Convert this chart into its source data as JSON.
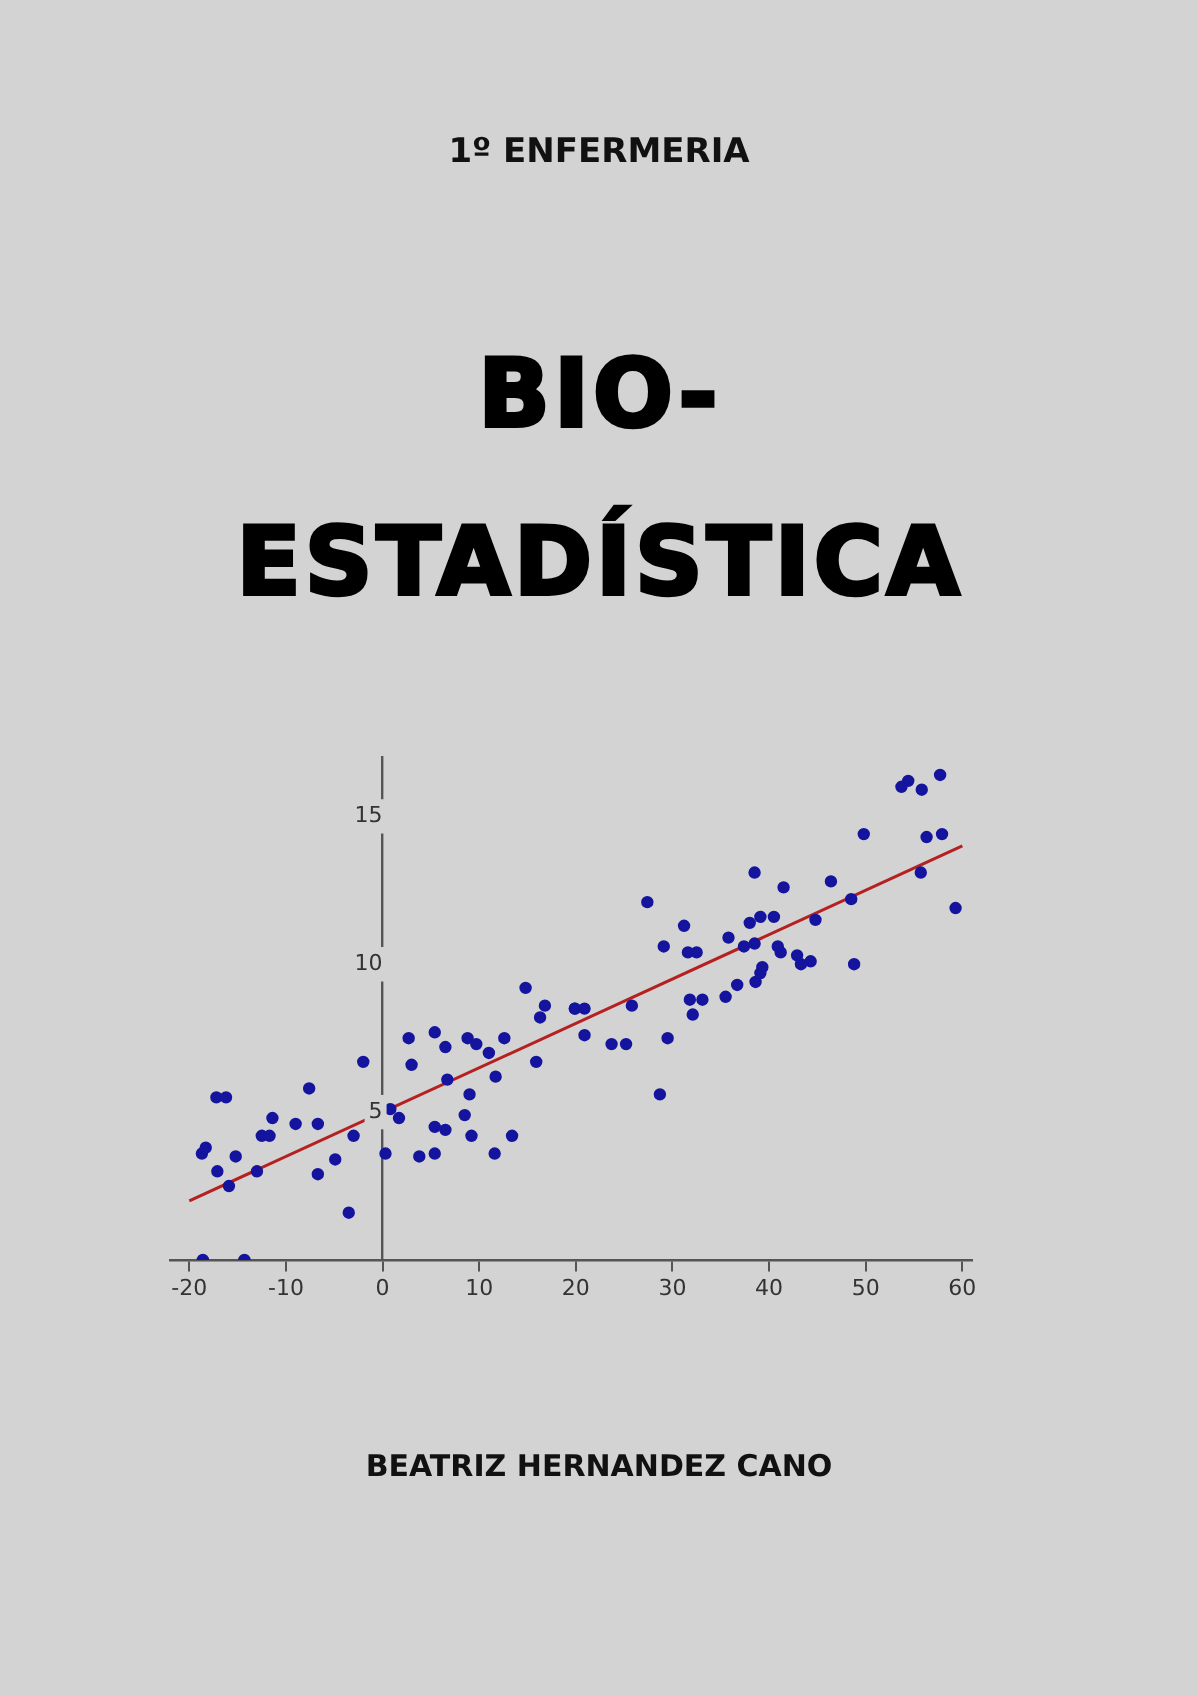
{
  "chart_data": {
    "type": "scatter",
    "title": "BIO-ESTADÍSTICA",
    "subtitle": "1º ENFERMERIA",
    "annotations": [
      "BEATRIZ HERNANDEZ CANO"
    ],
    "xlim": [
      -22,
      61
    ],
    "ylim": [
      0,
      17
    ],
    "xticks": [
      -20,
      -10,
      0,
      10,
      20,
      30,
      40,
      50,
      60
    ],
    "yticks": [
      5,
      10,
      15
    ],
    "grid": false,
    "legend": false,
    "marker": "circle",
    "series": [
      {
        "type": "scatter",
        "color": "#14149e",
        "x": [
          -18.7,
          -18.3,
          -17.1,
          -17.2,
          -16.2,
          -15.2,
          -15.9,
          -13.0,
          -12.5,
          -11.7,
          -11.4,
          -9.0,
          -7.6,
          -6.7,
          -6.7,
          -4.9,
          -3.5,
          -3.0,
          -2.0,
          0.3,
          0.8,
          1.7,
          2.7,
          3.0,
          3.8,
          5.4,
          5.4,
          5.4,
          6.5,
          6.5,
          6.7,
          8.5,
          8.8,
          9.0,
          9.2,
          9.7,
          11.0,
          11.6,
          11.7,
          12.6,
          13.4,
          14.8,
          15.9,
          16.3,
          16.8,
          19.9,
          -18.6,
          -14.3,
          19.9,
          20.9,
          20.9,
          23.7,
          25.2,
          25.8,
          27.4,
          28.7,
          29.1,
          29.5,
          31.2,
          31.6,
          31.8,
          32.1,
          32.5,
          33.1,
          35.5,
          35.8,
          36.7,
          37.4,
          38.0,
          38.5,
          38.5,
          38.6,
          39.1,
          39.1,
          39.3,
          40.5,
          40.9,
          41.2,
          41.5,
          42.9,
          43.3,
          44.3,
          44.8,
          46.4,
          48.5,
          48.8,
          49.8,
          53.7,
          54.4,
          55.8,
          55.7,
          56.3,
          57.7,
          57.9,
          59.3
        ],
        "values": [
          3.6,
          3.8,
          3.0,
          5.5,
          5.5,
          3.5,
          2.5,
          3.0,
          4.2,
          4.2,
          4.8,
          4.6,
          5.8,
          4.6,
          2.9,
          3.4,
          1.6,
          4.2,
          6.7,
          3.6,
          5.1,
          4.8,
          7.5,
          6.6,
          3.5,
          7.7,
          3.6,
          4.5,
          7.2,
          4.4,
          6.1,
          4.9,
          7.5,
          5.6,
          4.2,
          7.3,
          7.0,
          3.6,
          6.2,
          7.5,
          4.2,
          9.2,
          6.7,
          8.2,
          8.6,
          8.5,
          0.0,
          0.0,
          8.5,
          8.5,
          7.6,
          7.3,
          7.3,
          8.6,
          12.1,
          5.6,
          10.6,
          7.5,
          11.3,
          10.4,
          8.8,
          8.3,
          10.4,
          8.8,
          8.9,
          10.9,
          9.3,
          10.6,
          11.4,
          10.7,
          13.1,
          9.4,
          11.6,
          9.7,
          9.9,
          11.6,
          10.6,
          10.4,
          12.6,
          10.3,
          10.0,
          10.1,
          11.5,
          12.8,
          12.2,
          10.0,
          14.4,
          16.0,
          16.2,
          15.9,
          13.1,
          14.3,
          16.4,
          14.4,
          11.9
        ]
      },
      {
        "type": "line",
        "marker": "none",
        "color": "#b52020",
        "x": [
          -20,
          60
        ],
        "values": [
          2.0,
          14.0
        ]
      }
    ]
  }
}
